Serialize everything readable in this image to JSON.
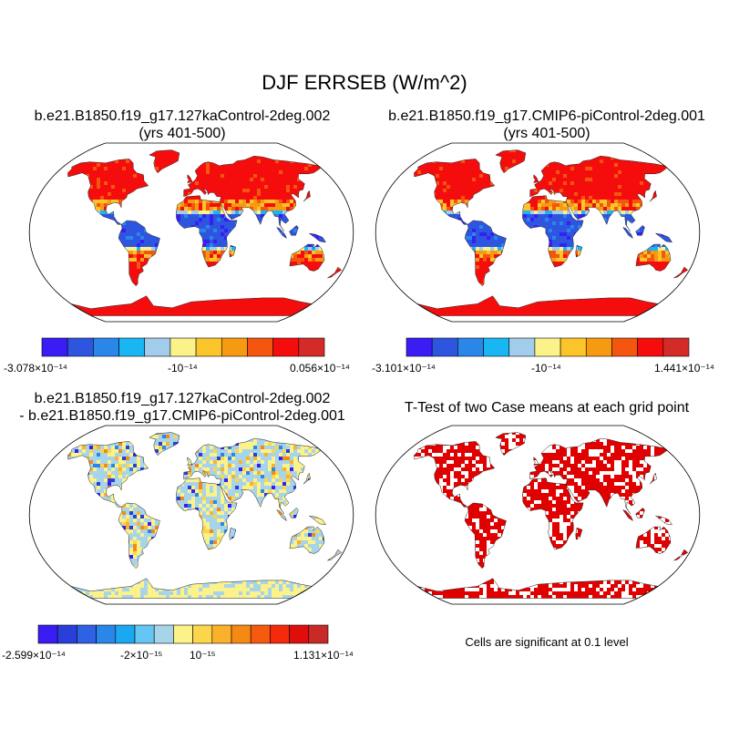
{
  "main_title": "DJF ERRSEB (W/m^2)",
  "panels": [
    {
      "title_line1": "b.e21.B1850.f19_g17.127kaControl-2deg.002",
      "title_line2": "(yrs 401-500)",
      "palette": [
        "#3a1df5",
        "#2e55e0",
        "#2a86e8",
        "#18b6f2",
        "#a2cdea",
        "#fbf28a",
        "#fbc52a",
        "#f69a12",
        "#f5560f",
        "#f50d0d",
        "#d42a28"
      ],
      "colorbar_labels": [
        "-3.078×10⁻¹⁴",
        "-10⁻¹⁴",
        "0.056×10⁻¹⁴"
      ],
      "style": "mean"
    },
    {
      "title_line1": "b.e21.B1850.f19_g17.CMIP6-piControl-2deg.001",
      "title_line2": "(yrs 401-500)",
      "palette": [
        "#3a1df5",
        "#2e55e0",
        "#2a86e8",
        "#18b6f2",
        "#a2cdea",
        "#fbf28a",
        "#fbc52a",
        "#f69a12",
        "#f5560f",
        "#f50d0d",
        "#d42a28"
      ],
      "colorbar_labels": [
        "-3.101×10⁻¹⁴",
        "-10⁻¹⁴",
        "1.441×10⁻¹⁴"
      ],
      "style": "mean"
    },
    {
      "title_line1": "b.e21.B1850.f19_g17.127kaControl-2deg.002",
      "title_line2": "- b.e21.B1850.f19_g17.CMIP6-piControl-2deg.001",
      "palette": [
        "#3a1df5",
        "#2a3fd9",
        "#2e62e4",
        "#2a86e8",
        "#1aa8f0",
        "#64c6f2",
        "#a8d4ea",
        "#fbf28a",
        "#fbd54a",
        "#fbb12a",
        "#f58a12",
        "#f55a0f",
        "#f52a0d",
        "#e00d0d",
        "#c82a28"
      ],
      "colorbar_labels": [
        "-2.599×10⁻¹⁴",
        "-2×10⁻¹⁵",
        "10⁻¹⁵",
        "1.131×10⁻¹⁴"
      ],
      "style": "diff"
    },
    {
      "title_line1": "T-Test of two Case means at each grid point",
      "title_line2": "",
      "note": "Cells are significant at 0.1 level",
      "style": "ttest",
      "significant_color": "#e00000"
    }
  ]
}
